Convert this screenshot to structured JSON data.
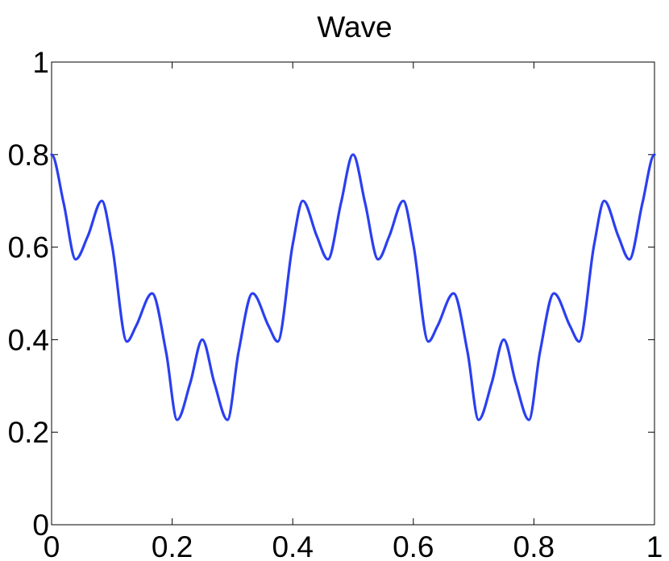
{
  "chart_data": {
    "type": "line",
    "title": "Wave",
    "xlabel": "",
    "ylabel": "",
    "xlim": [
      0,
      1
    ],
    "ylim": [
      0,
      1
    ],
    "x_ticks": [
      0,
      0.2,
      0.4,
      0.6,
      0.8,
      1
    ],
    "x_tick_labels": [
      "0",
      "0.2",
      "0.4",
      "0.6",
      "0.8",
      "1"
    ],
    "y_ticks": [
      0,
      0.2,
      0.4,
      0.6,
      0.8,
      1
    ],
    "y_tick_labels": [
      "0",
      "0.2",
      "0.4",
      "0.6",
      "0.8",
      "1"
    ],
    "grid": false,
    "legend": "none",
    "series": [
      {
        "color": "#2b3ff0",
        "x": [
          0,
          0.02,
          0.04,
          0.06,
          0.0833,
          0.1,
          0.125,
          0.14,
          0.1667,
          0.19,
          0.2083,
          0.23,
          0.25,
          0.27,
          0.2917,
          0.31,
          0.3333,
          0.36,
          0.375,
          0.4,
          0.4167,
          0.44,
          0.4583,
          0.48,
          0.5,
          0.52,
          0.5417,
          0.56,
          0.5833,
          0.6,
          0.625,
          0.64,
          0.6667,
          0.69,
          0.7083,
          0.73,
          0.75,
          0.77,
          0.7917,
          0.81,
          0.8333,
          0.86,
          0.875,
          0.9,
          0.9167,
          0.94,
          0.9583,
          0.98,
          1
        ],
        "y": [
          0.8,
          0.6953,
          0.5736,
          0.6235,
          0.7,
          0.6062,
          0.3959,
          0.4292,
          0.5,
          0.3728,
          0.2267,
          0.3064,
          0.4,
          0.3064,
          0.2267,
          0.3728,
          0.5,
          0.4292,
          0.3959,
          0.6062,
          0.7,
          0.6235,
          0.5736,
          0.6953,
          0.8,
          0.6953,
          0.5736,
          0.6235,
          0.7,
          0.6062,
          0.3959,
          0.4292,
          0.5,
          0.3728,
          0.2267,
          0.3064,
          0.4,
          0.3064,
          0.2267,
          0.3728,
          0.5,
          0.4292,
          0.3959,
          0.6062,
          0.7,
          0.6235,
          0.5736,
          0.6953,
          0.8
        ]
      }
    ]
  }
}
